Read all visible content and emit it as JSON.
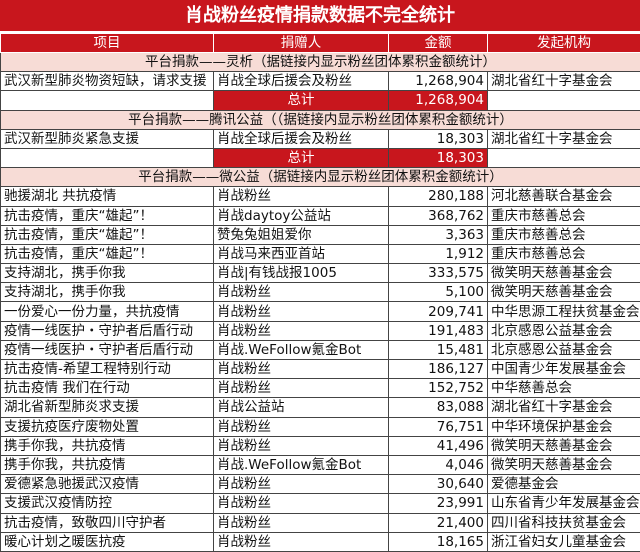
{
  "title": "肖战粉丝疫情捐款数据不完全统计",
  "headers": [
    "项目",
    "捐赠人",
    "金额",
    "发起机构"
  ],
  "accent_color": "#c8161d",
  "sections": [
    {
      "heading": "平台捐款——灵析（据链接内显示粉丝团体累积金额统计）",
      "rows": [
        [
          "武汉新型肺炎物资短缺，请求支援",
          "肖战全球后援会及粉丝",
          "1,268,904",
          "湖北省红十字基金会"
        ]
      ],
      "total_label": "总计",
      "total": "1,268,904"
    },
    {
      "heading": "平台捐款——腾讯公益（（据链接内显示粉丝团体累积金额统计）",
      "rows": [
        [
          "武汉新型肺炎紧急支援",
          "肖战全球后援会及粉丝",
          "18,303",
          "湖北省红十字基金会"
        ]
      ],
      "total_label": "总计",
      "total": "18,303"
    },
    {
      "heading": "平台捐款——微公益（据链接内显示粉丝团体累积金额统计）",
      "rows": [
        [
          "驰援湖北 共抗疫情",
          "肖战粉丝",
          "280,188",
          "河北慈善联合基金会"
        ],
        [
          "抗击疫情，重庆“雄起”！",
          "肖战daytoy公益站",
          "368,762",
          "重庆市慈善总会"
        ],
        [
          "抗击疫情，重庆“雄起”！",
          "赞兔兔姐姐爱你",
          "3,363",
          "重庆市慈善总会"
        ],
        [
          "抗击疫情，重庆“雄起”！",
          "肖战马来西亚首站",
          "1,912",
          "重庆市慈善总会"
        ],
        [
          "支持湖北，携手你我",
          "肖战|有钱战报1005",
          "333,575",
          "微笑明天慈善基金会"
        ],
        [
          "支持湖北，携手你我",
          "肖战粉丝",
          "5,100",
          "微笑明天慈善基金会"
        ],
        [
          "一份爱心一份力量，共抗疫情",
          "肖战粉丝",
          "209,741",
          "中华思源工程扶贫基金会"
        ],
        [
          "疫情一线医护・守护者后盾行动",
          "肖战粉丝",
          "191,483",
          "北京感恩公益基金会"
        ],
        [
          "疫情一线医护・守护者后盾行动",
          "肖战.WeFollow氪金Bot",
          "15,481",
          "北京感恩公益基金会"
        ],
        [
          "抗击疫情-希望工程特别行动",
          "肖战粉丝",
          "186,127",
          "中国青少年发展基金会"
        ],
        [
          "抗击疫情 我们在行动",
          "肖战粉丝",
          "152,752",
          "中华慈善总会"
        ],
        [
          "湖北省新型肺炎求支援",
          "肖战公益站",
          "83,088",
          "湖北省红十字基金会"
        ],
        [
          "支援抗疫医疗废物处置",
          "肖战粉丝",
          "76,751",
          "中华环境保护基金会"
        ],
        [
          "携手你我，共抗疫情",
          "肖战粉丝",
          "41,496",
          "微笑明天慈善基金会"
        ],
        [
          "携手你我，共抗疫情",
          "肖战.WeFollow氪金Bot",
          "4,046",
          "微笑明天慈善基金会"
        ],
        [
          "爱德紧急驰援武汉疫情",
          "肖战粉丝",
          "30,640",
          "爱德基金会"
        ],
        [
          "支援武汉疫情防控",
          "肖战粉丝",
          "23,991",
          "山东省青少年发展基金会"
        ],
        [
          "抗击疫情，致敬四川守护者",
          "肖战粉丝",
          "21,400",
          "四川省科技扶贫基金会"
        ],
        [
          "暖心计划之暖医抗疫",
          "肖战粉丝",
          "18,165",
          "浙江省妇女儿童基金会"
        ]
      ]
    }
  ]
}
